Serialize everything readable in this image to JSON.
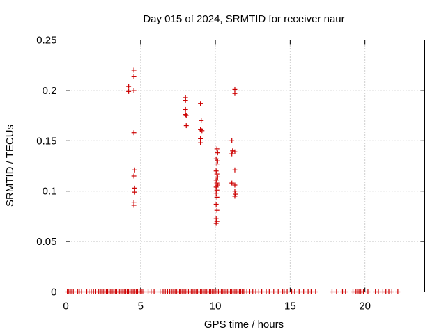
{
  "chart_data": {
    "type": "scatter",
    "title": "Day 015 of 2024, SRMTID for receiver naur",
    "xlabel": "GPS time / hours",
    "ylabel": "SRMTID / TECUs",
    "xlim": [
      0,
      24
    ],
    "ylim": [
      0,
      0.25
    ],
    "x_ticks": [
      0,
      5,
      10,
      15,
      20
    ],
    "x_tick_labels": [
      "0",
      "5",
      "10",
      "15",
      "20"
    ],
    "y_ticks": [
      0,
      0.05,
      0.1,
      0.15,
      0.2,
      0.25
    ],
    "y_tick_labels": [
      "0",
      "0.05",
      "0.1",
      "0.15",
      "0.2",
      "0.25"
    ],
    "grid": true,
    "marker": "+",
    "series": [
      {
        "name": "SRMTID",
        "color": "#cc0000",
        "points": [
          [
            4.2,
            0.204
          ],
          [
            4.2,
            0.199
          ],
          [
            4.55,
            0.22
          ],
          [
            4.55,
            0.214
          ],
          [
            4.55,
            0.2
          ],
          [
            4.55,
            0.158
          ],
          [
            4.6,
            0.121
          ],
          [
            4.55,
            0.115
          ],
          [
            4.6,
            0.103
          ],
          [
            4.6,
            0.099
          ],
          [
            4.55,
            0.089
          ],
          [
            4.55,
            0.086
          ],
          [
            8.0,
            0.193
          ],
          [
            8.0,
            0.19
          ],
          [
            8.0,
            0.181
          ],
          [
            8.0,
            0.176
          ],
          [
            8.05,
            0.175
          ],
          [
            8.05,
            0.165
          ],
          [
            9.0,
            0.187
          ],
          [
            9.05,
            0.17
          ],
          [
            9.0,
            0.161
          ],
          [
            9.1,
            0.16
          ],
          [
            9.0,
            0.152
          ],
          [
            9.0,
            0.148
          ],
          [
            10.1,
            0.142
          ],
          [
            10.15,
            0.138
          ],
          [
            10.05,
            0.132
          ],
          [
            10.15,
            0.13
          ],
          [
            10.1,
            0.127
          ],
          [
            10.05,
            0.12
          ],
          [
            10.1,
            0.117
          ],
          [
            10.15,
            0.114
          ],
          [
            10.05,
            0.111
          ],
          [
            10.1,
            0.108
          ],
          [
            10.15,
            0.106
          ],
          [
            10.05,
            0.104
          ],
          [
            10.1,
            0.101
          ],
          [
            10.05,
            0.098
          ],
          [
            10.1,
            0.094
          ],
          [
            10.05,
            0.087
          ],
          [
            10.1,
            0.081
          ],
          [
            10.05,
            0.073
          ],
          [
            10.1,
            0.07
          ],
          [
            10.05,
            0.068
          ],
          [
            11.1,
            0.15
          ],
          [
            11.15,
            0.14
          ],
          [
            11.1,
            0.137
          ],
          [
            11.3,
            0.139
          ],
          [
            11.3,
            0.201
          ],
          [
            11.3,
            0.197
          ],
          [
            11.3,
            0.121
          ],
          [
            11.1,
            0.108
          ],
          [
            11.3,
            0.106
          ],
          [
            11.3,
            0.1
          ],
          [
            11.35,
            0.097
          ],
          [
            11.3,
            0.095
          ]
        ],
        "baseline_zero_hours": [
          0.1,
          0.2,
          0.35,
          0.5,
          0.8,
          0.9,
          1.05,
          1.4,
          1.55,
          1.7,
          1.85,
          2.0,
          2.2,
          2.35,
          2.5,
          2.6,
          2.7,
          2.8,
          2.9,
          3.0,
          3.1,
          3.2,
          3.3,
          3.4,
          3.5,
          3.6,
          3.7,
          3.8,
          3.9,
          4.0,
          4.1,
          4.2,
          4.3,
          4.4,
          4.5,
          4.6,
          4.7,
          4.8,
          4.9,
          5.0,
          5.1,
          5.2,
          5.5,
          5.7,
          5.9,
          6.3,
          6.5,
          6.65,
          6.8,
          6.95,
          7.1,
          7.2,
          7.3,
          7.4,
          7.5,
          7.6,
          7.7,
          7.8,
          7.9,
          8.0,
          8.1,
          8.2,
          8.3,
          8.4,
          8.5,
          8.6,
          8.7,
          8.8,
          8.9,
          9.0,
          9.1,
          9.2,
          9.3,
          9.4,
          9.5,
          9.6,
          9.7,
          9.8,
          9.9,
          10.0,
          10.1,
          10.2,
          10.3,
          10.4,
          10.5,
          10.6,
          10.7,
          10.8,
          10.9,
          11.0,
          11.1,
          11.2,
          11.3,
          11.4,
          11.5,
          11.6,
          11.7,
          11.8,
          11.9,
          12.1,
          12.3,
          12.5,
          12.7,
          12.9,
          13.1,
          13.4,
          13.6,
          13.9,
          14.2,
          14.5,
          14.6,
          14.8,
          15.1,
          15.3,
          15.6,
          15.9,
          16.2,
          16.4,
          16.7,
          17.8,
          18.1,
          18.5,
          18.7,
          19.2,
          19.4,
          19.5,
          19.6,
          19.7,
          19.8,
          19.9,
          20.2,
          20.7,
          20.9,
          21.2,
          21.4,
          21.6,
          21.8,
          22.2
        ]
      }
    ]
  }
}
